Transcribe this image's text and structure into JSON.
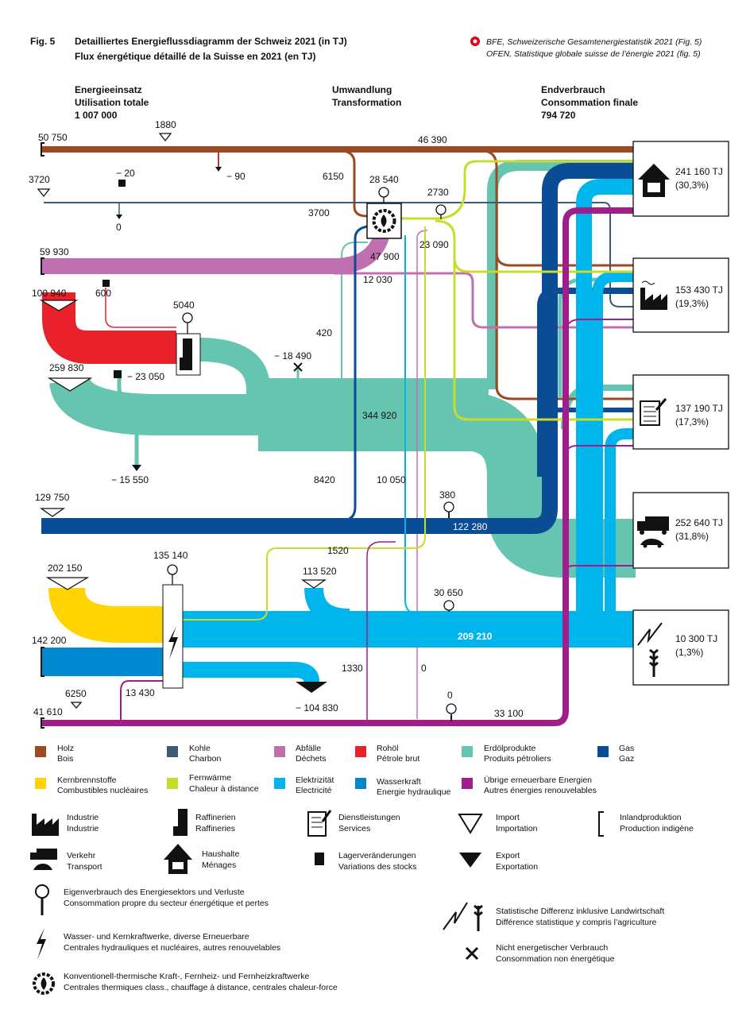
{
  "header": {
    "fig": "Fig. 5",
    "title_de": "Detailliertes Energieflussdiagramm der Schweiz 2021 (in TJ)",
    "title_fr": "Flux énergétique détaillé de la Suisse en 2021 (en TJ)",
    "source_de": "BFE, Schweizerische Gesamtenergiestatistik 2021 (Fig. 5)",
    "source_fr": "OFEN, Statistique globale suisse de l’énergie 2021 (fig. 5)"
  },
  "columns": {
    "input": {
      "de": "Energieeinsatz",
      "fr": "Utilisation totale",
      "value": "1 007 000"
    },
    "transform": {
      "de": "Umwandlung",
      "fr": "Transformation"
    },
    "final": {
      "de": "Endverbrauch",
      "fr": "Consommation finale",
      "value": "794 720"
    }
  },
  "flow_labels": {
    "holz_total": "50 750",
    "holz_import": "1880",
    "holz_main": "46 390",
    "holz_export": "− 90",
    "holz_transform": "6150",
    "kohle_import": "3720",
    "kohle_stock": "− 20",
    "kohle_export": "0",
    "kohle_transform": "3700",
    "transform_loss": "28 540",
    "transform_out": "47 900",
    "fernwaerme_loss": "2730",
    "fernwaerme": "23 090",
    "abfaelle": "59 930",
    "abfaelle_direct": "12 030",
    "rohoel": "100 940",
    "rohoel_stock": "600",
    "refinery_loss": "5040",
    "erdoel_import": "259 830",
    "erdoel_stock": "− 23 050",
    "erdoel_transform": "420",
    "non_energy": "− 18 490",
    "erdoel_total": "344 920",
    "erdoel_export": "− 15 550",
    "gas_transform": "8420",
    "elec_transform": "10 050",
    "gas_import": "129 750",
    "gas_loss": "380",
    "gas_total": "122 280",
    "fernwaerme_2": "1520",
    "kern": "202 150",
    "powerplant_loss": "135 140",
    "elec_import": "113 520",
    "elec_loss": "30 650",
    "elec_total": "209 210",
    "wasserkraft": "142 200",
    "elec_export": "− 104 830",
    "powerplant_renew": "13 430",
    "elec_other": "1330",
    "zero_a": "0",
    "uebrige_total": "41 610",
    "uebrige_import": "6250",
    "uebrige_loss": "0",
    "uebrige_main": "33 100"
  },
  "end_uses": [
    {
      "icon": "house-icon",
      "value": "241 160 TJ",
      "share": "(30,3%)"
    },
    {
      "icon": "factory-icon",
      "value": "153 430 TJ",
      "share": "(19,3%)"
    },
    {
      "icon": "services-document-icon",
      "value": "137 190 TJ",
      "share": "(17,3%)"
    },
    {
      "icon": "transport-truck-car-icon",
      "value": "252 640 TJ",
      "share": "(31,8%)"
    },
    {
      "icon": "statistical-difference-icon",
      "value": "10 300 TJ",
      "share": "(1,3%)"
    }
  ],
  "colors": {
    "holz": "#9b4a24",
    "kohle": "#3e5a75",
    "abfaelle": "#c070b0",
    "rohoel": "#e8212a",
    "erdoel": "#66c5b0",
    "gas": "#0a4d94",
    "kern": "#ffd400",
    "fernwaerme": "#c8dc2a",
    "elektrizitaet": "#00b5ec",
    "wasserkraft": "#0089d0",
    "uebrige": "#a01e8a"
  },
  "legend": {
    "carriers": [
      {
        "de": "Holz",
        "fr": "Bois",
        "color": "#9b4a24"
      },
      {
        "de": "Kohle",
        "fr": "Charbon",
        "color": "#3e5a75"
      },
      {
        "de": "Abfälle",
        "fr": "Déchets",
        "color": "#c070b0"
      },
      {
        "de": "Rohöl",
        "fr": "Pétrole brut",
        "color": "#e8212a"
      },
      {
        "de": "Erdölprodukte",
        "fr": "Produits pétroliers",
        "color": "#66c5b0"
      },
      {
        "de": "Gas",
        "fr": "Gaz",
        "color": "#0a4d94"
      },
      {
        "de": "Kernbrennstoffe",
        "fr": "Combustibles nucléaires",
        "color": "#ffd400"
      },
      {
        "de": "Fernwärme",
        "fr": "Chaleur à distance",
        "color": "#c8dc2a"
      },
      {
        "de": "Elektrizität",
        "fr": "Electricité",
        "color": "#00b5ec"
      },
      {
        "de": "Wasserkraft",
        "fr": "Energie hydraulique",
        "color": "#0089d0"
      },
      {
        "de": "Übrige erneuerbare Energien",
        "fr": "Autres énergies renouvelables",
        "color": "#a01e8a"
      }
    ],
    "symbols": [
      {
        "de": "Industrie",
        "fr": "Industrie"
      },
      {
        "de": "Raffinerien",
        "fr": "Raffineries"
      },
      {
        "de": "Dienstleistungen",
        "fr": "Services"
      },
      {
        "de": "Import",
        "fr": "Importation"
      },
      {
        "de": "Inlandproduktion",
        "fr": "Production indigène"
      },
      {
        "de": "Verkehr",
        "fr": "Transport"
      },
      {
        "de": "Haushalte",
        "fr": "Ménages"
      },
      {
        "de": "Lagerveränderungen",
        "fr": "Variations des stocks"
      },
      {
        "de": "Export",
        "fr": "Exportation"
      },
      {
        "de": "Eigenverbrauch des Energiesektors und Verluste",
        "fr": "Consommation propre du secteur énergétique et pertes"
      },
      {
        "de": "Wasser- und Kernkraftwerke, diverse Erneuerbare",
        "fr": "Centrales hydrauliques et nucléaires, autres renouvelables"
      },
      {
        "de": "Konventionell-thermische Kraft-, Fernheiz- und Fernheizkraftwerke",
        "fr": "Centrales thermiques class., chauffage à distance, centrales chaleur-force"
      },
      {
        "de": "Statistische Differenz inklusive Landwirtschaft",
        "fr": "Différence statistique y compris l’agriculture"
      },
      {
        "de": "Nicht energetischer Verbrauch",
        "fr": "Consommation non énergétique"
      }
    ]
  }
}
